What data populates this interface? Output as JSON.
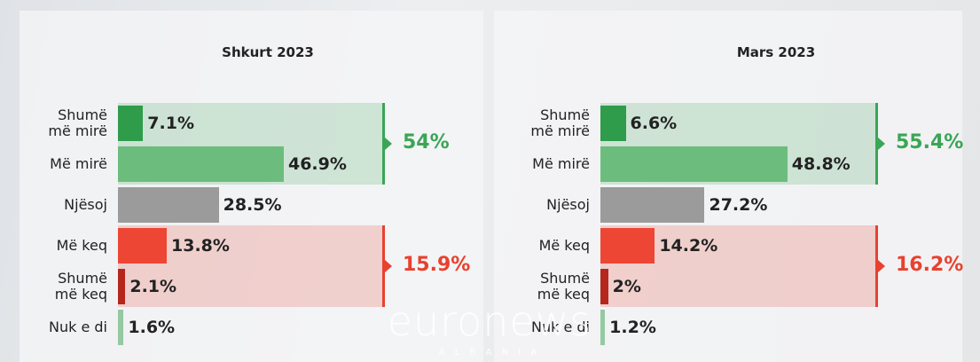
{
  "chart_data": [
    {
      "type": "bar",
      "title": "Shkurt 2023",
      "categories": [
        "Shumë më mirë",
        "Më mirë",
        "Njësoj",
        "Më keq",
        "Shumë më keq",
        "Nuk e di"
      ],
      "values": [
        7.1,
        46.9,
        28.5,
        13.8,
        2.1,
        1.6
      ],
      "value_labels": [
        "7.1%",
        "46.9%",
        "28.5%",
        "13.8%",
        "2.1%",
        "1.6%"
      ],
      "colors": [
        "#2f9c4b",
        "#6cbd7d",
        "#9b9b9b",
        "#ee4634",
        "#b5261d",
        "#94c9a2"
      ],
      "xlim": [
        0,
        75
      ],
      "groups": {
        "values": [
          54,
          15.9
        ],
        "value_labels": [
          "54%",
          "15.9%"
        ],
        "colors": [
          "#3aa655",
          "#e8412f"
        ]
      }
    },
    {
      "type": "bar",
      "title": "Mars 2023",
      "categories": [
        "Shumë më mirë",
        "Më mirë",
        "Njësoj",
        "Më keq",
        "Shumë më keq",
        "Nuk e di"
      ],
      "values": [
        6.6,
        48.8,
        27.2,
        14.2,
        2,
        1.2
      ],
      "value_labels": [
        "6.6%",
        "48.8%",
        "27.2%",
        "14.2%",
        "2%",
        "1.2%"
      ],
      "colors": [
        "#2f9c4b",
        "#6cbd7d",
        "#9b9b9b",
        "#ee4634",
        "#b5261d",
        "#94c9a2"
      ],
      "xlim": [
        0,
        72
      ],
      "groups": {
        "values": [
          55.4,
          16.2
        ],
        "value_labels": [
          "55.4%",
          "16.2%"
        ],
        "colors": [
          "#3aa655",
          "#e8412f"
        ]
      }
    }
  ],
  "logo": {
    "name": "euronews",
    "subtitle": "A L B A N I A"
  }
}
